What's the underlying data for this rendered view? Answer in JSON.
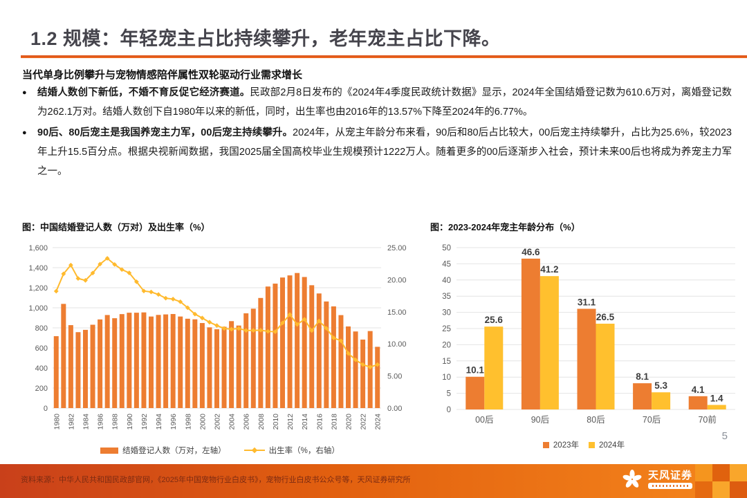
{
  "page": {
    "title": "1.2 规模：年轻宠主占比持续攀升，老年宠主占比下降。",
    "page_number": "5",
    "subtitle": "当代单身比例攀升与宠物情感陪伴属性双轮驱动行业需求增长",
    "bullets": [
      {
        "lead": "结婚人数创下新低，不婚不育反促它经济赛道。",
        "body": "民政部2月8日发布的《2024年4季度民政统计数据》显示，2024年全国结婚登记数为610.6万对，离婚登记数为262.1万对。结婚人数创下自1980年以来的新低，同时，出生率也由2016年的13.57%下降至2024年的6.77%。"
      },
      {
        "lead": "90后、80后宠主是我国养宠主力军，00后宠主持续攀升。",
        "body": "2024年，从宠主年龄分布来看，90后和80后占比较大，00后宠主持续攀升，占比为25.6%，较2023年上升15.5百分点。根据央视新闻数据，我国2025届全国高校毕业生规模预计1222万人。随着更多的00后逐渐步入社会，预计未来00后也将成为养宠主力军之一。"
      }
    ],
    "footer_source": "资料来源：中华人民共和国民政部官网，《2025年中国宠物行业白皮书》，宠物行业白皮书公众号等，天风证券研究所",
    "brand_name": "天风证券"
  },
  "chart_data": [
    {
      "type": "bar",
      "subtype": "combo-bar-line",
      "title": "图：中国结婚登记人数（万对）及出生率（%）",
      "x": [
        1980,
        1981,
        1982,
        1983,
        1984,
        1985,
        1986,
        1987,
        1988,
        1989,
        1990,
        1991,
        1992,
        1993,
        1994,
        1995,
        1996,
        1997,
        1998,
        1999,
        2000,
        2001,
        2002,
        2003,
        2004,
        2005,
        2006,
        2007,
        2008,
        2009,
        2010,
        2011,
        2012,
        2013,
        2014,
        2015,
        2016,
        2017,
        2018,
        2019,
        2020,
        2021,
        2022,
        2023,
        2024
      ],
      "x_tick_every": 2,
      "series": [
        {
          "name": "结婚登记人数（万对，左轴）",
          "kind": "bar",
          "axis": "left",
          "color": "#ED7D31",
          "values": [
            717,
            1039,
            827,
            757,
            780,
            831,
            884,
            928,
            896,
            937,
            951,
            951,
            954,
            913,
            929,
            934,
            938,
            913,
            891,
            885,
            848,
            805,
            786,
            811,
            867,
            823,
            945,
            991,
            1098,
            1212,
            1241,
            1302,
            1323,
            1347,
            1307,
            1225,
            1143,
            1063,
            1014,
            927,
            814,
            764,
            683,
            768,
            611
          ]
        },
        {
          "name": "出生率（%，右轴）",
          "kind": "line",
          "axis": "right",
          "color": "#FFBA2E",
          "values": [
            18.21,
            20.91,
            22.28,
            20.19,
            19.9,
            21.04,
            22.43,
            23.33,
            22.37,
            21.58,
            21.06,
            19.68,
            18.24,
            18.09,
            17.7,
            17.12,
            16.98,
            16.57,
            15.64,
            14.64,
            14.03,
            13.38,
            12.86,
            12.41,
            12.29,
            12.4,
            12.09,
            12.1,
            12.14,
            11.95,
            11.9,
            13.27,
            14.57,
            13.03,
            13.83,
            12.07,
            13.57,
            12.43,
            10.94,
            10.48,
            8.52,
            7.52,
            6.77,
            6.39,
            6.77
          ]
        }
      ],
      "left_axis": {
        "min": 0,
        "max": 1600,
        "step": 200
      },
      "right_axis": {
        "min": 0,
        "max": 25,
        "step": 5,
        "decimals": 2
      },
      "grid": true,
      "legend_position": "bottom"
    },
    {
      "type": "bar",
      "subtype": "grouped-bar",
      "title": "图：2023-2024年宠主年龄分布（%）",
      "categories": [
        "00后",
        "90后",
        "80后",
        "70后",
        "70前"
      ],
      "series": [
        {
          "name": "2023年",
          "color": "#ED7D31",
          "values": [
            10.1,
            46.6,
            31.1,
            8.1,
            4.1
          ]
        },
        {
          "name": "2024年",
          "color": "#FFC02E",
          "values": [
            25.6,
            41.2,
            26.5,
            5.3,
            1.4
          ]
        }
      ],
      "ylim": [
        0,
        50
      ],
      "ystep": 5,
      "grid": true,
      "data_labels": true,
      "legend_position": "bottom"
    }
  ],
  "colors": {
    "accent_rule": "#E2531D",
    "title_text": "#45444C",
    "body_text": "#1A1A1A",
    "axis_text": "#595959",
    "bar_2023": "#ED7D31",
    "bar_2024": "#FFC02E",
    "line_birth_rate": "#FFBA2E",
    "footer_gradient_left": "#C9401A",
    "footer_gradient_right": "#F5861C",
    "footer_text": "#7D2B12",
    "page_number": "#8A8F98"
  }
}
